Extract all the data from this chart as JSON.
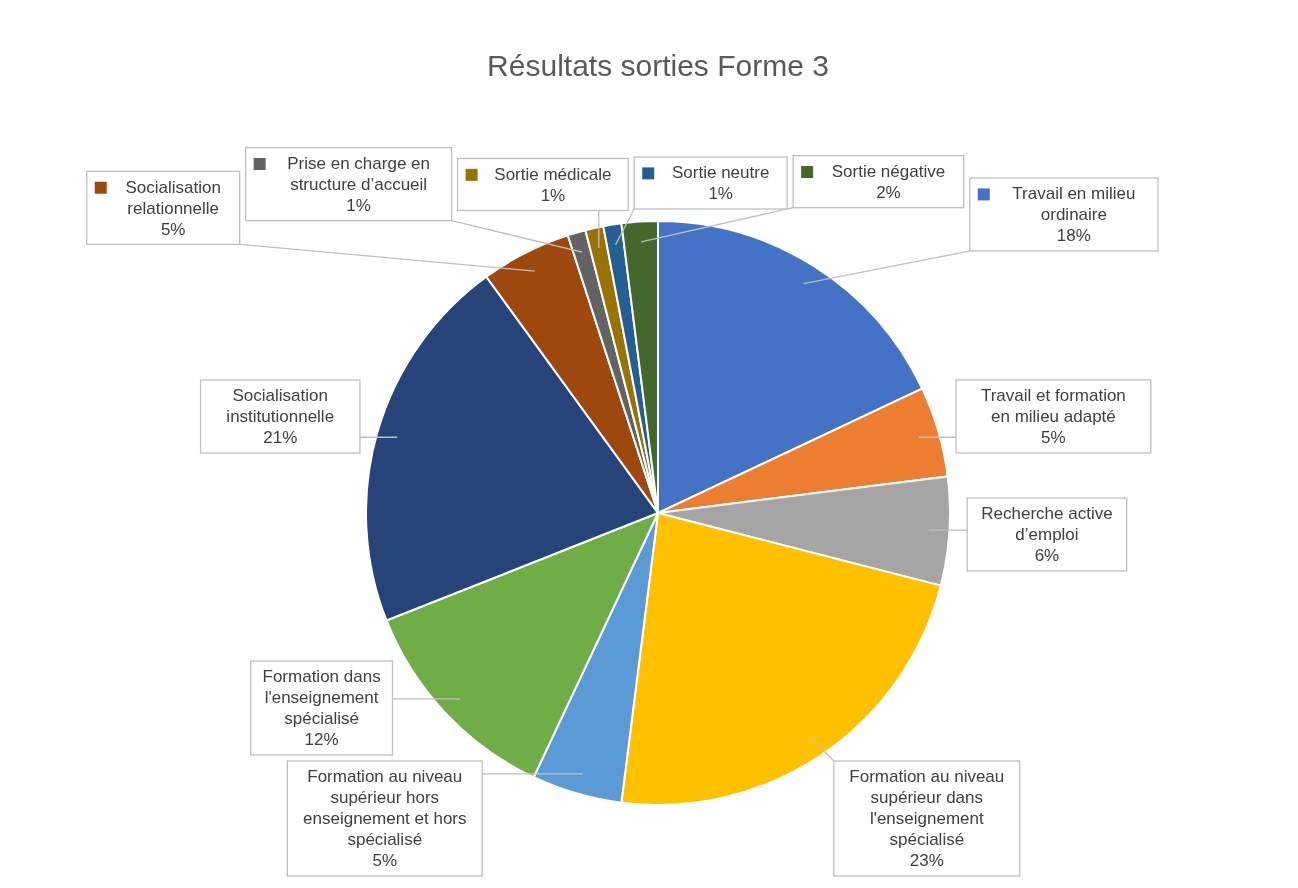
{
  "chart_data": {
    "type": "pie",
    "title": "Résultats sorties Forme 3",
    "categories": [
      "Travail en milieu ordinaire",
      "Travail et formation en milieu adapté",
      "Recherche active d’emploi",
      "Formation au niveau supérieur dans l'enseignement spécialisé",
      "Formation au niveau supérieur hors enseignement et hors spécialisé",
      "Formation dans l'enseignement spécialisé",
      "Socialisation institutionnelle",
      "Socialisation relationnelle",
      "Prise en charge en structure d’accueil",
      "Sortie médicale",
      "Sortie neutre",
      "Sortie négative"
    ],
    "values": [
      18,
      5,
      6,
      23,
      5,
      12,
      21,
      5,
      1,
      1,
      1,
      2
    ],
    "value_labels": [
      "18%",
      "5%",
      "6%",
      "23%",
      "5%",
      "12%",
      "21%",
      "5%",
      "1%",
      "1%",
      "1%",
      "2%"
    ],
    "legend": "top",
    "colors": [
      "#4472c4",
      "#ed7d31",
      "#a5a5a5",
      "#ffc000",
      "#5b9bd5",
      "#70ad47",
      "#264478",
      "#9e480e",
      "#636363",
      "#997300",
      "#255e91",
      "#43682b"
    ]
  }
}
